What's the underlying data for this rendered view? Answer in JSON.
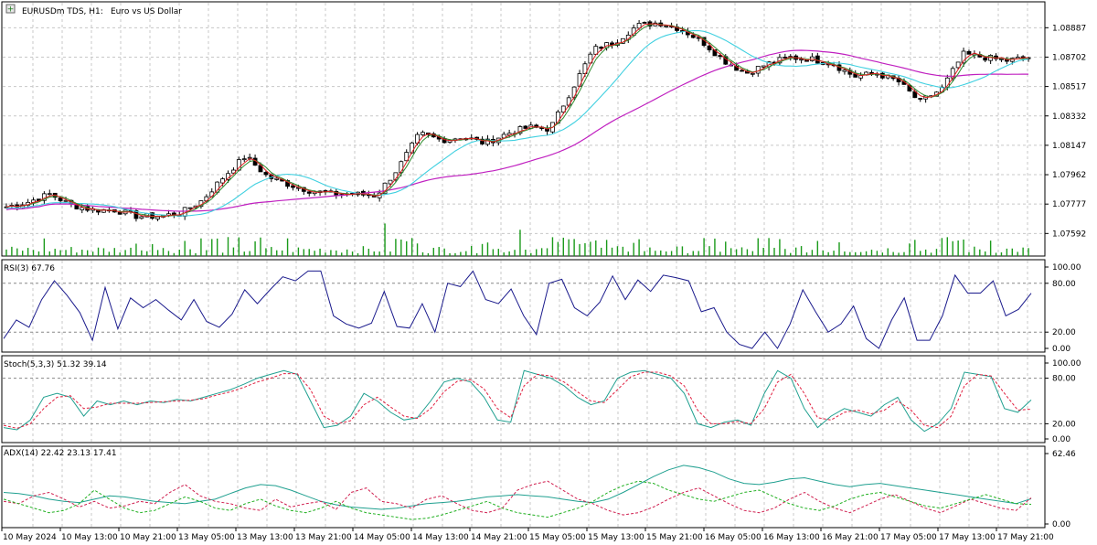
{
  "header": {
    "symbol": "EURUSDm TDS, H1:",
    "description": "Euro vs US Dollar",
    "icon": "plus-square-icon"
  },
  "colors": {
    "background": "#ffffff",
    "grid": "#c8c8c8",
    "frame": "#000000",
    "bull_body": "#ffffff",
    "bear_body": "#000000",
    "candle_outline": "#000000",
    "ma_fast_red": "#e02020",
    "ma_fast_green": "#2e8b2e",
    "ma_mid": "#40d0e0",
    "ma_slow": "#c020c0",
    "volume": "#1a9a1a",
    "rsi": "#1a1a8c",
    "stoch_main": "#20a090",
    "stoch_signal": "#e02040",
    "adx_main": "#20a090",
    "adx_plus": "#20b020",
    "adx_minus": "#d02050"
  },
  "chart_data": [
    {
      "type": "candlestick",
      "title": "EURUSDm TDS, H1:",
      "subtitle": "Euro vs US Dollar",
      "ylim": [
        1.0745,
        1.0905
      ],
      "yticks": [
        "1.08887",
        "1.08702",
        "1.08517",
        "1.08332",
        "1.08147",
        "1.07962",
        "1.07777",
        "1.07592"
      ],
      "ytick_values": [
        1.08887,
        1.08702,
        1.08517,
        1.08332,
        1.08147,
        1.07962,
        1.07777,
        1.07592
      ],
      "x_labels": [
        "10 May 2024",
        "10 May 13:00",
        "10 May 21:00",
        "13 May 05:00",
        "13 May 13:00",
        "13 May 21:00",
        "14 May 05:00",
        "14 May 13:00",
        "14 May 21:00",
        "15 May 05:00",
        "15 May 13:00",
        "15 May 21:00",
        "16 May 05:00",
        "16 May 13:00",
        "16 May 21:00",
        "17 May 05:00",
        "17 May 13:00",
        "17 May 21:00"
      ],
      "close_anchors": [
        1.0776,
        1.0779,
        1.0784,
        1.0777,
        1.0774,
        1.0774,
        1.077,
        1.077,
        1.0772,
        1.078,
        1.0795,
        1.0808,
        1.0795,
        1.079,
        1.0786,
        1.0784,
        1.0784,
        1.0783,
        1.08,
        1.0822,
        1.0818,
        1.082,
        1.0816,
        1.0822,
        1.0826,
        1.0825,
        1.085,
        1.0875,
        1.088,
        1.089,
        1.0892,
        1.0888,
        1.088,
        1.0868,
        1.086,
        1.0866,
        1.087,
        1.0869,
        1.0866,
        1.0858,
        1.086,
        1.0855,
        1.0842,
        1.085,
        1.0872,
        1.087,
        1.0868,
        1.087
      ],
      "grid": true,
      "series": [
        {
          "name": "",
          "kind": "ma",
          "period_hint": "fast"
        },
        {
          "name": "",
          "kind": "ma",
          "period_hint": "medium"
        },
        {
          "name": "",
          "kind": "ma",
          "period_hint": "slow"
        },
        {
          "name": "",
          "kind": "volume"
        }
      ]
    },
    {
      "type": "line",
      "title": "RSI(3) 67.76",
      "ylim": [
        0,
        100
      ],
      "yticks": [
        "100.00",
        "80.00",
        "20.00",
        "0.00"
      ],
      "ytick_values": [
        100,
        80,
        20,
        0
      ],
      "levels": [
        80,
        20
      ],
      "values": [
        12,
        35,
        26,
        60,
        83,
        65,
        44,
        10,
        75,
        24,
        62,
        50,
        60,
        47,
        35,
        60,
        33,
        26,
        42,
        72,
        55,
        72,
        88,
        83,
        95,
        95,
        40,
        30,
        25,
        31,
        70,
        27,
        25,
        55,
        20,
        80,
        76,
        95,
        60,
        55,
        73,
        40,
        17,
        80,
        85,
        50,
        40,
        57,
        89,
        60,
        84,
        70,
        90,
        87,
        83,
        45,
        50,
        20,
        5,
        0,
        20,
        0,
        30,
        72,
        45,
        20,
        30,
        52,
        12,
        0,
        35,
        62,
        10,
        10,
        40,
        90,
        68,
        68,
        83,
        40,
        48,
        67.76
      ]
    },
    {
      "type": "line",
      "title": "Stoch(5,3,3) 51.32 39.14",
      "ylim": [
        0,
        100
      ],
      "yticks": [
        "100.00",
        "80.00",
        "20.00",
        "0.00"
      ],
      "ytick_values": [
        100,
        80,
        20,
        0
      ],
      "levels": [
        80,
        20
      ],
      "series": [
        {
          "name": "",
          "values": [
            15,
            12,
            25,
            55,
            60,
            55,
            30,
            50,
            45,
            50,
            45,
            50,
            48,
            52,
            50,
            55,
            60,
            65,
            72,
            80,
            85,
            90,
            85,
            50,
            15,
            18,
            30,
            60,
            50,
            35,
            25,
            28,
            50,
            75,
            80,
            75,
            55,
            25,
            22,
            90,
            85,
            80,
            70,
            55,
            45,
            50,
            80,
            88,
            90,
            85,
            80,
            60,
            20,
            15,
            22,
            25,
            18,
            60,
            90,
            80,
            40,
            15,
            30,
            40,
            35,
            30,
            45,
            55,
            25,
            10,
            20,
            40,
            88,
            85,
            82,
            40,
            35,
            51.32
          ]
        },
        {
          "name": "",
          "values": [
            18,
            14,
            20,
            40,
            55,
            57,
            40,
            42,
            47,
            47,
            47,
            48,
            49,
            50,
            51,
            53,
            58,
            62,
            68,
            75,
            80,
            86,
            86,
            65,
            30,
            20,
            24,
            45,
            55,
            42,
            30,
            27,
            40,
            62,
            76,
            78,
            66,
            40,
            28,
            70,
            85,
            83,
            75,
            62,
            50,
            48,
            65,
            82,
            88,
            88,
            83,
            70,
            38,
            20,
            20,
            23,
            20,
            40,
            75,
            85,
            60,
            28,
            25,
            35,
            38,
            33,
            38,
            50,
            38,
            18,
            15,
            30,
            70,
            85,
            83,
            60,
            38,
            39.14
          ]
        }
      ]
    },
    {
      "type": "line",
      "title": "ADX(14) 22.42 23.13 17.41",
      "ylim": [
        0,
        62.46
      ],
      "yticks": [
        "62.46",
        "0.00"
      ],
      "ytick_values": [
        62.46,
        0
      ],
      "series": [
        {
          "name": "",
          "values": [
            28,
            27,
            25,
            22,
            20,
            19,
            22,
            25,
            24,
            22,
            20,
            19,
            18,
            20,
            22,
            27,
            32,
            35,
            34,
            30,
            25,
            20,
            17,
            15,
            14,
            13,
            14,
            16,
            18,
            19,
            20,
            22,
            24,
            25,
            26,
            25,
            24,
            22,
            20,
            19,
            22,
            28,
            35,
            42,
            48,
            52,
            50,
            46,
            40,
            36,
            35,
            37,
            40,
            41,
            38,
            35,
            33,
            35,
            36,
            34,
            32,
            30,
            28,
            26,
            24,
            22,
            20,
            18,
            22.42
          ]
        },
        {
          "name": "",
          "values": [
            20,
            18,
            25,
            28,
            22,
            15,
            20,
            14,
            16,
            20,
            18,
            28,
            35,
            25,
            20,
            18,
            14,
            12,
            22,
            15,
            18,
            20,
            13,
            28,
            32,
            20,
            18,
            14,
            22,
            25,
            18,
            12,
            10,
            14,
            30,
            35,
            38,
            30,
            22,
            18,
            12,
            8,
            10,
            15,
            22,
            28,
            32,
            25,
            18,
            12,
            10,
            14,
            22,
            28,
            20,
            14,
            10,
            16,
            22,
            26,
            20,
            14,
            10,
            16,
            22,
            18,
            14,
            12,
            23.13
          ]
        },
        {
          "name": "",
          "values": [
            22,
            18,
            14,
            10,
            12,
            18,
            30,
            22,
            14,
            10,
            12,
            18,
            24,
            20,
            14,
            12,
            18,
            22,
            16,
            12,
            10,
            14,
            20,
            14,
            10,
            8,
            6,
            4,
            5,
            8,
            12,
            16,
            20,
            14,
            10,
            8,
            6,
            10,
            14,
            20,
            28,
            34,
            38,
            36,
            30,
            26,
            22,
            20,
            24,
            28,
            30,
            24,
            18,
            14,
            12,
            16,
            22,
            26,
            28,
            24,
            20,
            16,
            14,
            18,
            22,
            26,
            22,
            18,
            17.41
          ]
        }
      ]
    }
  ]
}
